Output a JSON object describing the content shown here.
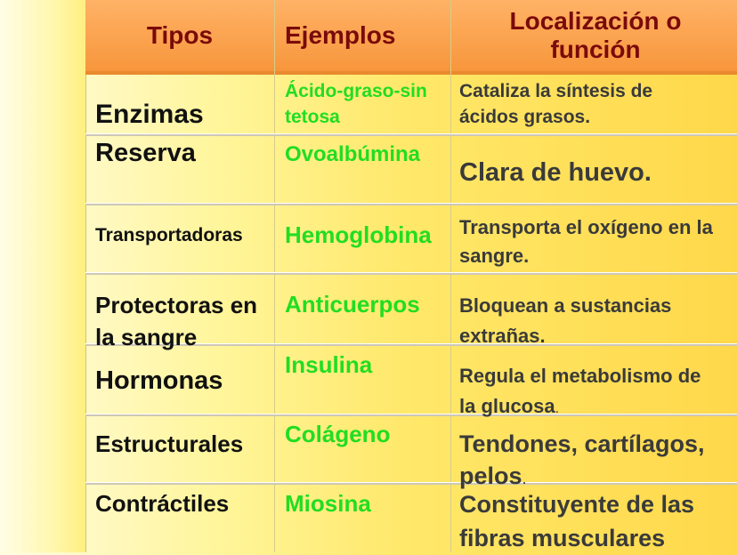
{
  "header": {
    "col1": "Tipos",
    "col2": "Ejemplos",
    "col3_line1": "Localización o",
    "col3_line2": "función"
  },
  "rows": [
    {
      "tipo": "Enzimas",
      "ejemplo_l1": "Ácido-graso-sin",
      "ejemplo_l2": "tetosa",
      "funcion_l1": "Cataliza la síntesis de",
      "funcion_l2": "ácidos grasos."
    },
    {
      "tipo": "Reserva",
      "ejemplo": "Ovoalbúmina",
      "funcion": "Clara de huevo."
    },
    {
      "tipo": "Transportadoras",
      "ejemplo": "Hemoglobina",
      "funcion_l1": "Transporta el oxígeno en la",
      "funcion_l2": "sangre."
    },
    {
      "tipo_l1": "Protectoras en",
      "tipo_l2": "la sangre",
      "ejemplo": "Anticuerpos",
      "funcion_l1": "Bloquean a sustancias",
      "funcion_l2": "extrañas."
    },
    {
      "tipo": "Hormonas",
      "ejemplo": "Insulina",
      "funcion_l1": "Regula el metabolismo de",
      "funcion_l2": "la glucosa",
      "funcion_l2_suffix": "."
    },
    {
      "tipo": "Estructurales",
      "ejemplo": "Colágeno",
      "funcion_l1": "Tendones, cartílagos,",
      "funcion_l2": "pelos",
      "funcion_l2_suffix": "."
    },
    {
      "tipo": "Contráctiles",
      "ejemplo": "Miosina",
      "funcion_l1": "Constituyente de las",
      "funcion_l2": "fibras musculares"
    }
  ]
}
